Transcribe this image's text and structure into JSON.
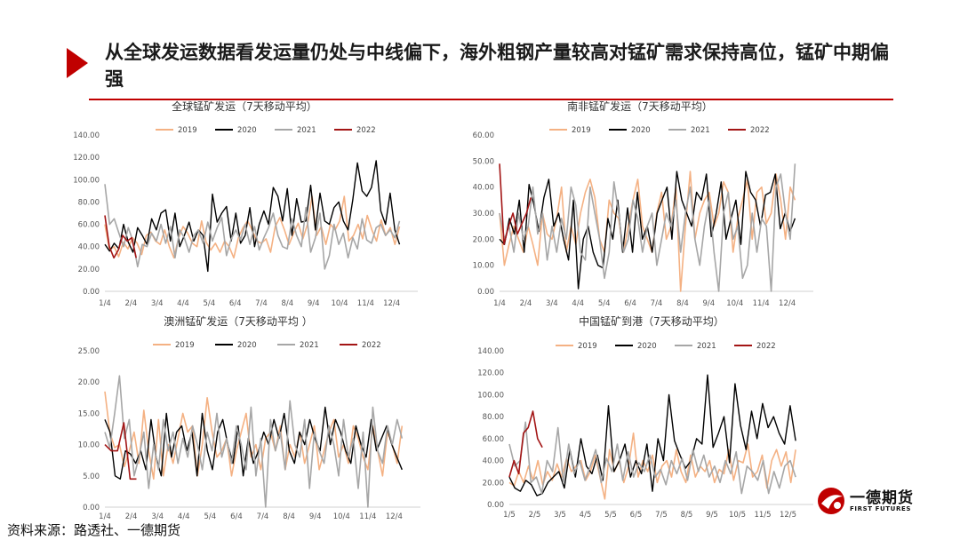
{
  "headline": "从全球发运数据看发运量仍处与中线偏下，海外粗钢产量较高对锰矿需求保持高位，锰矿中期偏强",
  "source": "资料来源：路透社、一德期货",
  "logo": {
    "cn": "一德期货",
    "en": "FIRST FUTURES"
  },
  "colors": {
    "accent": "#c00000",
    "s2019": "#f4b183",
    "s2020": "#000000",
    "s2021": "#a6a6a6",
    "s2022": "#a31515"
  },
  "chart_data": [
    {
      "type": "line",
      "title": "全球锰矿发运（7天移动平均）",
      "ylim": [
        0,
        140
      ],
      "yticks": [
        "0.00",
        "20.00",
        "40.00",
        "60.00",
        "80.00",
        "100.00",
        "120.00",
        "140.00"
      ],
      "xticks": [
        "1/4",
        "2/4",
        "3/4",
        "4/4",
        "5/4",
        "6/4",
        "7/4",
        "8/4",
        "9/4",
        "10/4",
        "11/4",
        "12/4"
      ],
      "x_max": 12,
      "series": [
        {
          "name": "2019",
          "values": [
            60,
            37,
            40,
            31,
            44,
            38,
            48,
            43,
            33,
            50,
            53,
            45,
            42,
            55,
            40,
            30,
            48,
            58,
            52,
            43,
            40,
            63,
            44,
            37,
            43,
            35,
            45,
            40,
            30,
            48,
            57,
            63,
            55,
            45,
            43,
            47,
            35,
            58,
            66,
            55,
            42,
            52,
            61,
            47,
            60,
            85,
            50,
            58,
            42,
            60,
            55,
            63,
            85,
            45,
            50,
            60,
            47,
            68,
            55,
            45,
            64,
            50,
            57,
            42,
            58
          ]
        },
        {
          "name": "2020",
          "values": [
            42,
            36,
            43,
            38,
            60,
            44,
            35,
            57,
            50,
            42,
            65,
            55,
            70,
            73,
            45,
            70,
            40,
            50,
            62,
            45,
            55,
            50,
            18,
            87,
            62,
            70,
            76,
            45,
            70,
            43,
            50,
            75,
            40,
            60,
            72,
            60,
            93,
            85,
            63,
            92,
            50,
            83,
            62,
            63,
            95,
            55,
            88,
            63,
            60,
            75,
            80,
            63,
            55,
            82,
            115,
            90,
            85,
            93,
            117,
            72,
            60,
            88,
            55,
            42
          ]
        },
        {
          "name": "2021",
          "values": [
            96,
            60,
            65,
            52,
            40,
            57,
            45,
            22,
            42,
            40,
            52,
            45,
            60,
            43,
            58,
            30,
            55,
            48,
            35,
            50,
            55,
            43,
            62,
            45,
            57,
            66,
            32,
            47,
            55,
            46,
            60,
            42,
            58,
            37,
            48,
            57,
            70,
            50,
            40,
            38,
            65,
            50,
            40,
            75,
            35,
            48,
            70,
            20,
            32,
            60,
            42,
            52,
            30,
            48,
            38,
            65,
            46,
            43,
            57,
            60,
            50,
            55,
            48,
            63
          ]
        },
        {
          "name": "2022",
          "values": [
            68,
            40,
            30,
            37,
            50,
            45,
            48,
            30
          ]
        }
      ]
    },
    {
      "type": "line",
      "title": "南非锰矿发运（7天移动平均）",
      "ylim": [
        0,
        60
      ],
      "yticks": [
        "0.00",
        "10.00",
        "20.00",
        "30.00",
        "40.00",
        "50.00",
        "60.00"
      ],
      "xticks": [
        "1/4",
        "2/4",
        "3/4",
        "4/4",
        "5/4",
        "6/4",
        "7/4",
        "8/4",
        "9/4",
        "10/4",
        "11/4",
        "12/4"
      ],
      "x_max": 12,
      "series": [
        {
          "name": "2019",
          "values": [
            30,
            10,
            18,
            25,
            20,
            15,
            25,
            18,
            10,
            30,
            22,
            20,
            28,
            40,
            15,
            25,
            18,
            30,
            38,
            43,
            36,
            20,
            15,
            35,
            30,
            28,
            15,
            25,
            35,
            43,
            25,
            20,
            15,
            30,
            38,
            20,
            25,
            40,
            0,
            25,
            46,
            20,
            30,
            35,
            38,
            25,
            30,
            42,
            38,
            15,
            28,
            35,
            43,
            20,
            38,
            40,
            26,
            30,
            45,
            35,
            20,
            40,
            35
          ]
        },
        {
          "name": "2020",
          "values": [
            20,
            18,
            28,
            22,
            35,
            15,
            41,
            33,
            23,
            36,
            43,
            25,
            30,
            20,
            12,
            35,
            1,
            20,
            25,
            15,
            10,
            9,
            28,
            20,
            35,
            15,
            32,
            15,
            38,
            20,
            25,
            15,
            30,
            35,
            40,
            20,
            46,
            35,
            30,
            25,
            38,
            35,
            45,
            21,
            30,
            42,
            20,
            28,
            35,
            18,
            46,
            38,
            35,
            25,
            37,
            38,
            45,
            24,
            30,
            23,
            28
          ]
        },
        {
          "name": "2021",
          "values": [
            30,
            20,
            25,
            15,
            30,
            20,
            25,
            40,
            22,
            30,
            12,
            25,
            15,
            28,
            20,
            40,
            33,
            15,
            12,
            40,
            30,
            20,
            5,
            15,
            42,
            30,
            15,
            20,
            35,
            28,
            15,
            25,
            30,
            10,
            20,
            30,
            25,
            35,
            15,
            30,
            40,
            20,
            10,
            25,
            35,
            15,
            0,
            30,
            38,
            20,
            25,
            5,
            10,
            30,
            15,
            28,
            25,
            0,
            40,
            45,
            30,
            20,
            49
          ]
        },
        {
          "name": "2022",
          "values": [
            49,
            18,
            25,
            30,
            22,
            26,
            30,
            36
          ]
        }
      ]
    },
    {
      "type": "line",
      "title": "澳洲锰矿发运（7天移动平均 ）",
      "ylim": [
        0,
        25
      ],
      "yticks": [
        "0.00",
        "5.00",
        "10.00",
        "15.00",
        "20.00",
        "25.00"
      ],
      "xticks": [
        "1/4",
        "2/4",
        "3/4",
        "4/4",
        "5/4",
        "6/4",
        "7/4",
        "8/4",
        "9/4",
        "10/4",
        "11/4",
        "12/4"
      ],
      "x_max": 12,
      "series": [
        {
          "name": "2019",
          "values": [
            18.5,
            12,
            9.5,
            10,
            6.5,
            9,
            12,
            7,
            15.5,
            9,
            4.5,
            14,
            5,
            10,
            7,
            11,
            15,
            12,
            13,
            5,
            10,
            17.5,
            12,
            8,
            9,
            11,
            5,
            9,
            12,
            15,
            8,
            10,
            6,
            11,
            12,
            9,
            13,
            6,
            10,
            8,
            12,
            7,
            10,
            13,
            6,
            9,
            12,
            14,
            8,
            10,
            7,
            13,
            11,
            8,
            6,
            13,
            9,
            5,
            12,
            10,
            7,
            13
          ]
        },
        {
          "name": "2020",
          "values": [
            14,
            12,
            5,
            4.5,
            9,
            8.5,
            7,
            9,
            6,
            14,
            8,
            5,
            15,
            8,
            12,
            13,
            9,
            12,
            5,
            15,
            9,
            6,
            12,
            14,
            10,
            7,
            13,
            5,
            11,
            7,
            9,
            12,
            10,
            14,
            11,
            15,
            9,
            7,
            12,
            10,
            14,
            11,
            9,
            16,
            10,
            14,
            12,
            9,
            7,
            13,
            10,
            8,
            14,
            9,
            11,
            13,
            10,
            8,
            6
          ]
        },
        {
          "name": "2021",
          "values": [
            12,
            9.5,
            15,
            21,
            11,
            14,
            5,
            8,
            12,
            3,
            10,
            6,
            14,
            9,
            12,
            7,
            11,
            8,
            13,
            10,
            6,
            12,
            9,
            15,
            8,
            11,
            7,
            13,
            10,
            6,
            16,
            5,
            11,
            0,
            14,
            9,
            12,
            6,
            17,
            10,
            8,
            14,
            3,
            12,
            9,
            7,
            13,
            10,
            5,
            14,
            8,
            11,
            3,
            12,
            0,
            16,
            9,
            7,
            13,
            10,
            14,
            11
          ]
        },
        {
          "name": "2022",
          "values": [
            10,
            9,
            9,
            13.5,
            4.5,
            4.5
          ]
        }
      ]
    },
    {
      "type": "line",
      "title": "中国锰矿到港（7天移动平均）",
      "ylim": [
        0,
        140
      ],
      "yticks": [
        "0.00",
        "20.00",
        "40.00",
        "60.00",
        "80.00",
        "100.00",
        "120.00",
        "140.00"
      ],
      "xticks": [
        "1/5",
        "2/5",
        "3/5",
        "4/5",
        "5/5",
        "6/5",
        "7/5",
        "8/5",
        "9/5",
        "10/5",
        "11/5",
        "12/5"
      ],
      "x_max": 12,
      "series": [
        {
          "name": "2019",
          "values": [
            20,
            17,
            30,
            20,
            35,
            22,
            40,
            18,
            30,
            22,
            37,
            25,
            42,
            30,
            35,
            40,
            22,
            30,
            45,
            25,
            5,
            50,
            30,
            40,
            20,
            35,
            65,
            25,
            40,
            30,
            45,
            20,
            35,
            40,
            25,
            50,
            30,
            20,
            45,
            25,
            35,
            30,
            40,
            20,
            32,
            28,
            50,
            22,
            40,
            38,
            55,
            25,
            30,
            45,
            15,
            40,
            50,
            35,
            48,
            20,
            50
          ]
        },
        {
          "name": "2020",
          "values": [
            25,
            15,
            12,
            22,
            18,
            8,
            10,
            20,
            25,
            30,
            15,
            50,
            25,
            60,
            35,
            28,
            45,
            22,
            90,
            30,
            40,
            55,
            25,
            40,
            28,
            55,
            12,
            60,
            40,
            100,
            58,
            45,
            33,
            40,
            60,
            55,
            118,
            52,
            65,
            80,
            38,
            110,
            72,
            50,
            85,
            60,
            92,
            70,
            80,
            65,
            55,
            90,
            58
          ]
        },
        {
          "name": "2021",
          "values": [
            55,
            35,
            40,
            75,
            20,
            25,
            10,
            40,
            30,
            70,
            20,
            55,
            28,
            40,
            22,
            35,
            50,
            20,
            42,
            30,
            55,
            22,
            48,
            25,
            38,
            30,
            45,
            25,
            32,
            18,
            40,
            28,
            42,
            22,
            50,
            30,
            45,
            25,
            35,
            20,
            40,
            28,
            48,
            10,
            35,
            30,
            22,
            40,
            10,
            30,
            15,
            35,
            40,
            25
          ]
        },
        {
          "name": "2022",
          "values": [
            25,
            40,
            28,
            65,
            70,
            85,
            60,
            52
          ]
        }
      ]
    }
  ]
}
